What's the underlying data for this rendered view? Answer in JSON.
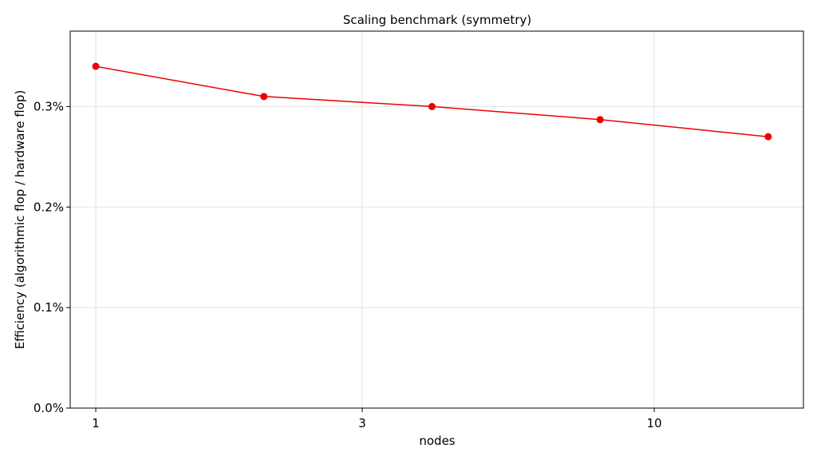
{
  "chart_data": {
    "type": "line",
    "title": "Scaling benchmark (symmetry)",
    "xlabel": "nodes",
    "ylabel": "Efficiency (algorithmic flop / hardware flop)",
    "xscale": "log",
    "xlim": [
      0.9,
      18.5
    ],
    "ylim": [
      0.0,
      0.00375
    ],
    "xticks": [
      {
        "value": 1,
        "label": "1"
      },
      {
        "value": 3,
        "label": "3"
      },
      {
        "value": 10,
        "label": "10"
      }
    ],
    "yticks": [
      {
        "value": 0.0,
        "label": "0.0%"
      },
      {
        "value": 0.001,
        "label": "0.1%"
      },
      {
        "value": 0.002,
        "label": "0.2%"
      },
      {
        "value": 0.003,
        "label": "0.3%"
      }
    ],
    "grid": true,
    "series": [
      {
        "color": "#ee0000",
        "x": [
          1,
          2,
          4,
          8,
          16
        ],
        "y": [
          0.0034,
          0.0031,
          0.003,
          0.00287,
          0.0027
        ]
      }
    ]
  }
}
